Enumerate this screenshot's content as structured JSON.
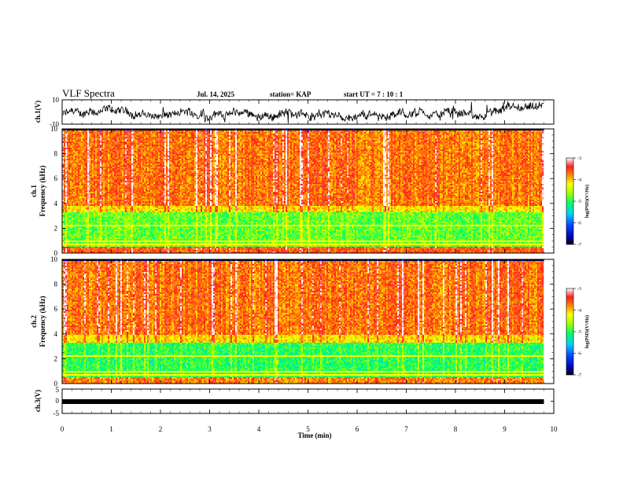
{
  "header": {
    "title": "VLF Spectra",
    "date": "Jul. 14, 2025",
    "station": "station= KAP",
    "start": "start UT =   7 : 10 : 1"
  },
  "chart_data": [
    {
      "type": "line",
      "panel": "ch1-waveform",
      "ylabel": "ch.1(V)",
      "ylim": [
        -10,
        10
      ],
      "yticks": [
        "10",
        "-10"
      ],
      "xlim": [
        0,
        10
      ],
      "data_end_min": 9.8,
      "mean_v": -2,
      "amplitude_v": 4
    },
    {
      "type": "heatmap",
      "panel": "ch1-spectrogram",
      "ylabel": "ch.1\nFrequency (kHz)",
      "ylim": [
        0,
        10
      ],
      "yticks": [
        "0",
        "2",
        "4",
        "6",
        "8",
        "10"
      ],
      "xlim": [
        0,
        10
      ],
      "data_end_min": 9.8,
      "colorbar": {
        "label": "log(PSD)(V²/Hz)",
        "min": -7,
        "max": -3,
        "ticks": [
          "-3",
          "-4",
          "-5",
          "-6",
          "-7"
        ]
      },
      "bands": [
        {
          "f_from_khz": 0,
          "f_to_khz": 0.6,
          "log_psd": -3.6
        },
        {
          "f_from_khz": 0.6,
          "f_to_khz": 3.4,
          "log_psd": -4.8
        },
        {
          "f_from_khz": 3.4,
          "f_to_khz": 3.9,
          "log_psd": -4.1
        },
        {
          "f_from_khz": 3.9,
          "f_to_khz": 10,
          "log_psd": -3.7
        }
      ]
    },
    {
      "type": "heatmap",
      "panel": "ch2-spectrogram",
      "ylabel": "ch.2\nFrequency (kHz)",
      "ylim": [
        0,
        10
      ],
      "yticks": [
        "0",
        "2",
        "4",
        "6",
        "8",
        "10"
      ],
      "xlim": [
        0,
        10
      ],
      "data_end_min": 9.8,
      "colorbar": {
        "label": "log(PSD)(V²/Hz)",
        "min": -7,
        "max": -3,
        "ticks": [
          "-3",
          "-4",
          "-5",
          "-6",
          "-7"
        ]
      },
      "bands": [
        {
          "f_from_khz": 0,
          "f_to_khz": 0.6,
          "log_psd": -3.8
        },
        {
          "f_from_khz": 0.6,
          "f_to_khz": 3.4,
          "log_psd": -5.0
        },
        {
          "f_from_khz": 3.4,
          "f_to_khz": 4.0,
          "log_psd": -4.1
        },
        {
          "f_from_khz": 4.0,
          "f_to_khz": 10,
          "log_psd": -3.7
        }
      ]
    },
    {
      "type": "line",
      "panel": "ch3-waveform",
      "ylabel": "ch.3(V)",
      "ylim": [
        -5,
        5
      ],
      "yticks": [
        "5",
        "0",
        "-5"
      ],
      "xlim": [
        0,
        10
      ],
      "data_end_min": 9.8,
      "mean_v": 0,
      "amplitude_v": 0.5
    }
  ],
  "xaxis": {
    "label": "Time (min)",
    "ticks": [
      "0",
      "1",
      "2",
      "3",
      "4",
      "5",
      "6",
      "7",
      "8",
      "9",
      "10"
    ]
  }
}
